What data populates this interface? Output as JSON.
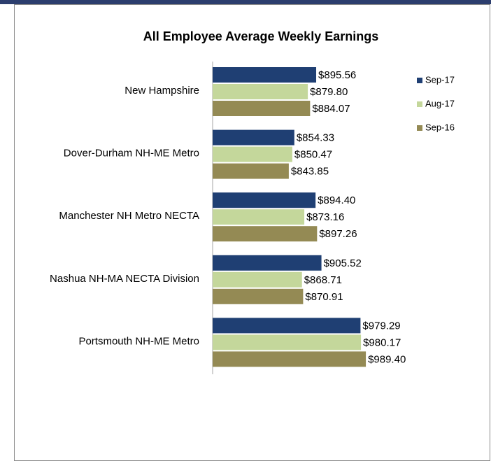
{
  "chart_data": {
    "type": "hbar",
    "title": "All Employee Average Weekly Earnings",
    "categories": [
      "New Hampshire",
      "Dover-Durham NH-ME Metro",
      "Manchester NH Metro NECTA",
      "Nashua NH-MA NECTA Division",
      "Portsmouth NH-ME Metro"
    ],
    "series": [
      {
        "name": "Sep-17",
        "color": "#1f3f73",
        "values": [
          895.56,
          854.33,
          894.4,
          905.52,
          979.29
        ],
        "value_labels": [
          "$895.56",
          "$854.33",
          "$894.40",
          "$905.52",
          "$979.29"
        ]
      },
      {
        "name": "Aug-17",
        "color": "#c4d79b",
        "values": [
          879.8,
          850.47,
          873.16,
          868.71,
          980.17
        ],
        "value_labels": [
          "$879.80",
          "$850.47",
          "$873.16",
          "$868.71",
          "$980.17"
        ]
      },
      {
        "name": "Sep-16",
        "color": "#948a54",
        "values": [
          884.07,
          843.85,
          897.26,
          870.91,
          989.4
        ],
        "value_labels": [
          "$884.07",
          "$843.85",
          "$897.26",
          "$870.91",
          "$989.40"
        ]
      }
    ],
    "xlim": [
      700,
      1050
    ],
    "legend": "right"
  }
}
